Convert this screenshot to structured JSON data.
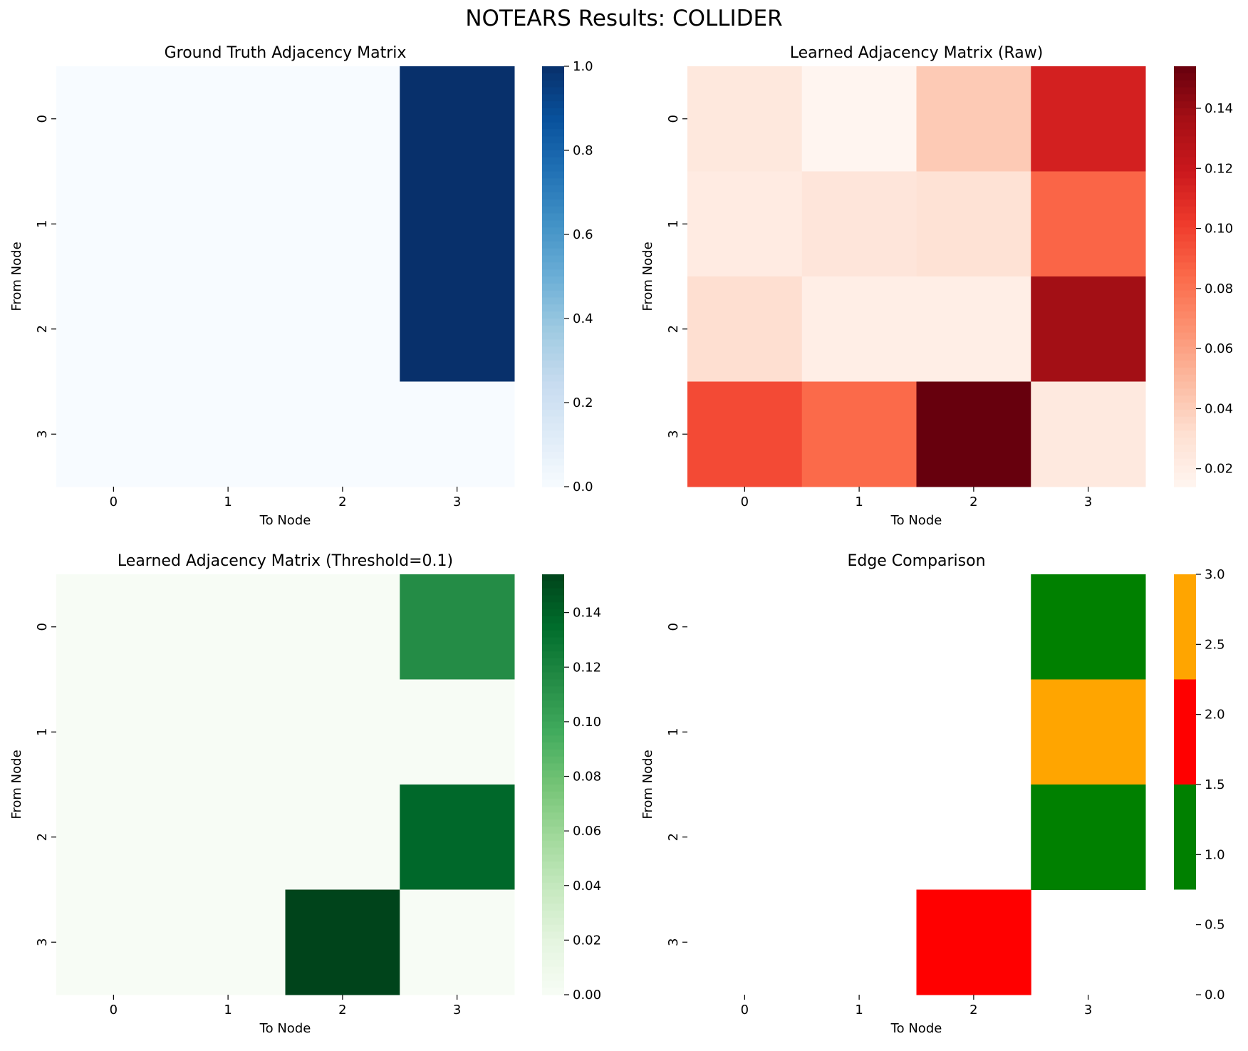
{
  "figure": {
    "suptitle": "NOTEARS Results: COLLIDER"
  },
  "chart_data": [
    {
      "type": "heatmap",
      "title": "Ground Truth Adjacency Matrix",
      "xlabel": "To Node",
      "ylabel": "From Node",
      "x_categories": [
        "0",
        "1",
        "2",
        "3"
      ],
      "y_categories": [
        "0",
        "1",
        "2",
        "3"
      ],
      "values": [
        [
          0,
          0,
          0,
          1
        ],
        [
          0,
          0,
          0,
          1
        ],
        [
          0,
          0,
          0,
          1
        ],
        [
          0,
          0,
          0,
          0
        ]
      ],
      "colormap": "Blues",
      "vmin": 0,
      "vmax": 1,
      "colorbar_ticks": [
        "0.0",
        "0.2",
        "0.4",
        "0.6",
        "0.8",
        "1.0"
      ]
    },
    {
      "type": "heatmap",
      "title": "Learned Adjacency Matrix (Raw)",
      "xlabel": "To Node",
      "ylabel": "From Node",
      "x_categories": [
        "0",
        "1",
        "2",
        "3"
      ],
      "y_categories": [
        "0",
        "1",
        "2",
        "3"
      ],
      "values": [
        [
          0.025,
          0.014,
          0.042,
          0.115
        ],
        [
          0.022,
          0.027,
          0.03,
          0.086
        ],
        [
          0.032,
          0.02,
          0.02,
          0.137
        ],
        [
          0.096,
          0.084,
          0.154,
          0.024
        ]
      ],
      "colormap": "Reds",
      "vmin": 0.014,
      "vmax": 0.154,
      "colorbar_ticks": [
        "0.02",
        "0.04",
        "0.06",
        "0.08",
        "0.10",
        "0.12",
        "0.14"
      ]
    },
    {
      "type": "heatmap",
      "title": "Learned Adjacency Matrix (Threshold=0.1)",
      "xlabel": "To Node",
      "ylabel": "From Node",
      "x_categories": [
        "0",
        "1",
        "2",
        "3"
      ],
      "y_categories": [
        "0",
        "1",
        "2",
        "3"
      ],
      "values": [
        [
          0,
          0,
          0,
          0.115
        ],
        [
          0,
          0,
          0,
          0
        ],
        [
          0,
          0,
          0,
          0.137
        ],
        [
          0,
          0,
          0.154,
          0
        ]
      ],
      "colormap": "Greens",
      "vmin": 0,
      "vmax": 0.154,
      "colorbar_ticks": [
        "0.00",
        "0.02",
        "0.04",
        "0.06",
        "0.08",
        "0.10",
        "0.12",
        "0.14"
      ]
    },
    {
      "type": "heatmap",
      "title": "Edge Comparison",
      "xlabel": "To Node",
      "ylabel": "From Node",
      "x_categories": [
        "0",
        "1",
        "2",
        "3"
      ],
      "y_categories": [
        "0",
        "1",
        "2",
        "3"
      ],
      "values": [
        [
          0,
          0,
          0,
          1
        ],
        [
          0,
          0,
          0,
          3
        ],
        [
          0,
          0,
          0,
          1
        ],
        [
          0,
          0,
          2,
          0
        ]
      ],
      "colormap": "listed",
      "colors": [
        "#008000",
        "#ff0000",
        "#ffa500"
      ],
      "masked_value": 0,
      "vmin": 0,
      "vmax": 3,
      "colorbar_ticks": [
        "0.0",
        "0.5",
        "1.0",
        "1.5",
        "2.0",
        "2.5",
        "3.0"
      ]
    }
  ]
}
